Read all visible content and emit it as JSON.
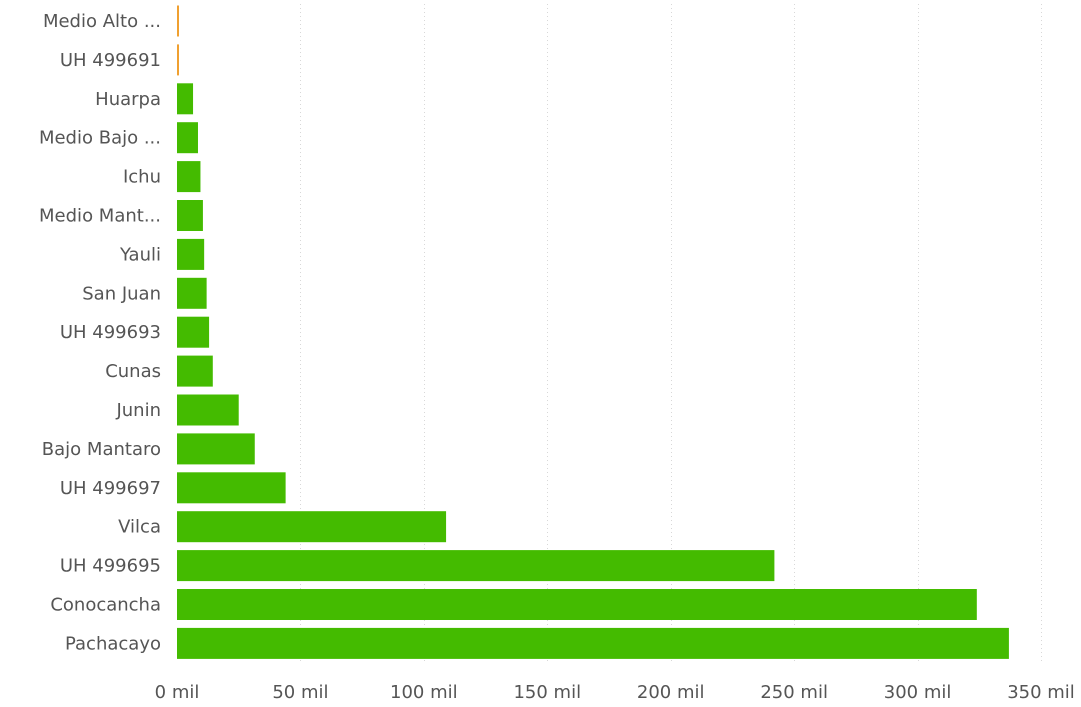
{
  "chart_data": {
    "type": "bar",
    "orientation": "horizontal",
    "title": "",
    "xlabel": "",
    "ylabel": "",
    "categories": [
      "Medio Alto ...",
      "UH 499691",
      "Huarpa",
      "Medio Bajo ...",
      "Ichu",
      "Medio Mant...",
      "Yauli",
      "San Juan",
      "UH 499693",
      "Cunas",
      "Junin",
      "Bajo Mantaro",
      "UH 499697",
      "Vilca",
      "UH 499695",
      "Conocancha",
      "Pachacayo"
    ],
    "values": [
      300,
      300,
      6500,
      8500,
      9500,
      10500,
      11000,
      12000,
      13000,
      14500,
      25000,
      31500,
      44000,
      109000,
      242000,
      324000,
      337000
    ],
    "bar_colors": [
      "#f0a030",
      "#f0a030",
      "#44bb00",
      "#44bb00",
      "#44bb00",
      "#44bb00",
      "#44bb00",
      "#44bb00",
      "#44bb00",
      "#44bb00",
      "#44bb00",
      "#44bb00",
      "#44bb00",
      "#44bb00",
      "#44bb00",
      "#44bb00",
      "#44bb00"
    ],
    "xlim": [
      0,
      350000
    ],
    "xticks": [
      0,
      50000,
      100000,
      150000,
      200000,
      250000,
      300000,
      350000
    ],
    "xtick_labels": [
      "0 mil",
      "50 mil",
      "100 mil",
      "150 mil",
      "200 mil",
      "250 mil",
      "300 mil",
      "350 mil"
    ],
    "grid": true,
    "legend": "none"
  }
}
